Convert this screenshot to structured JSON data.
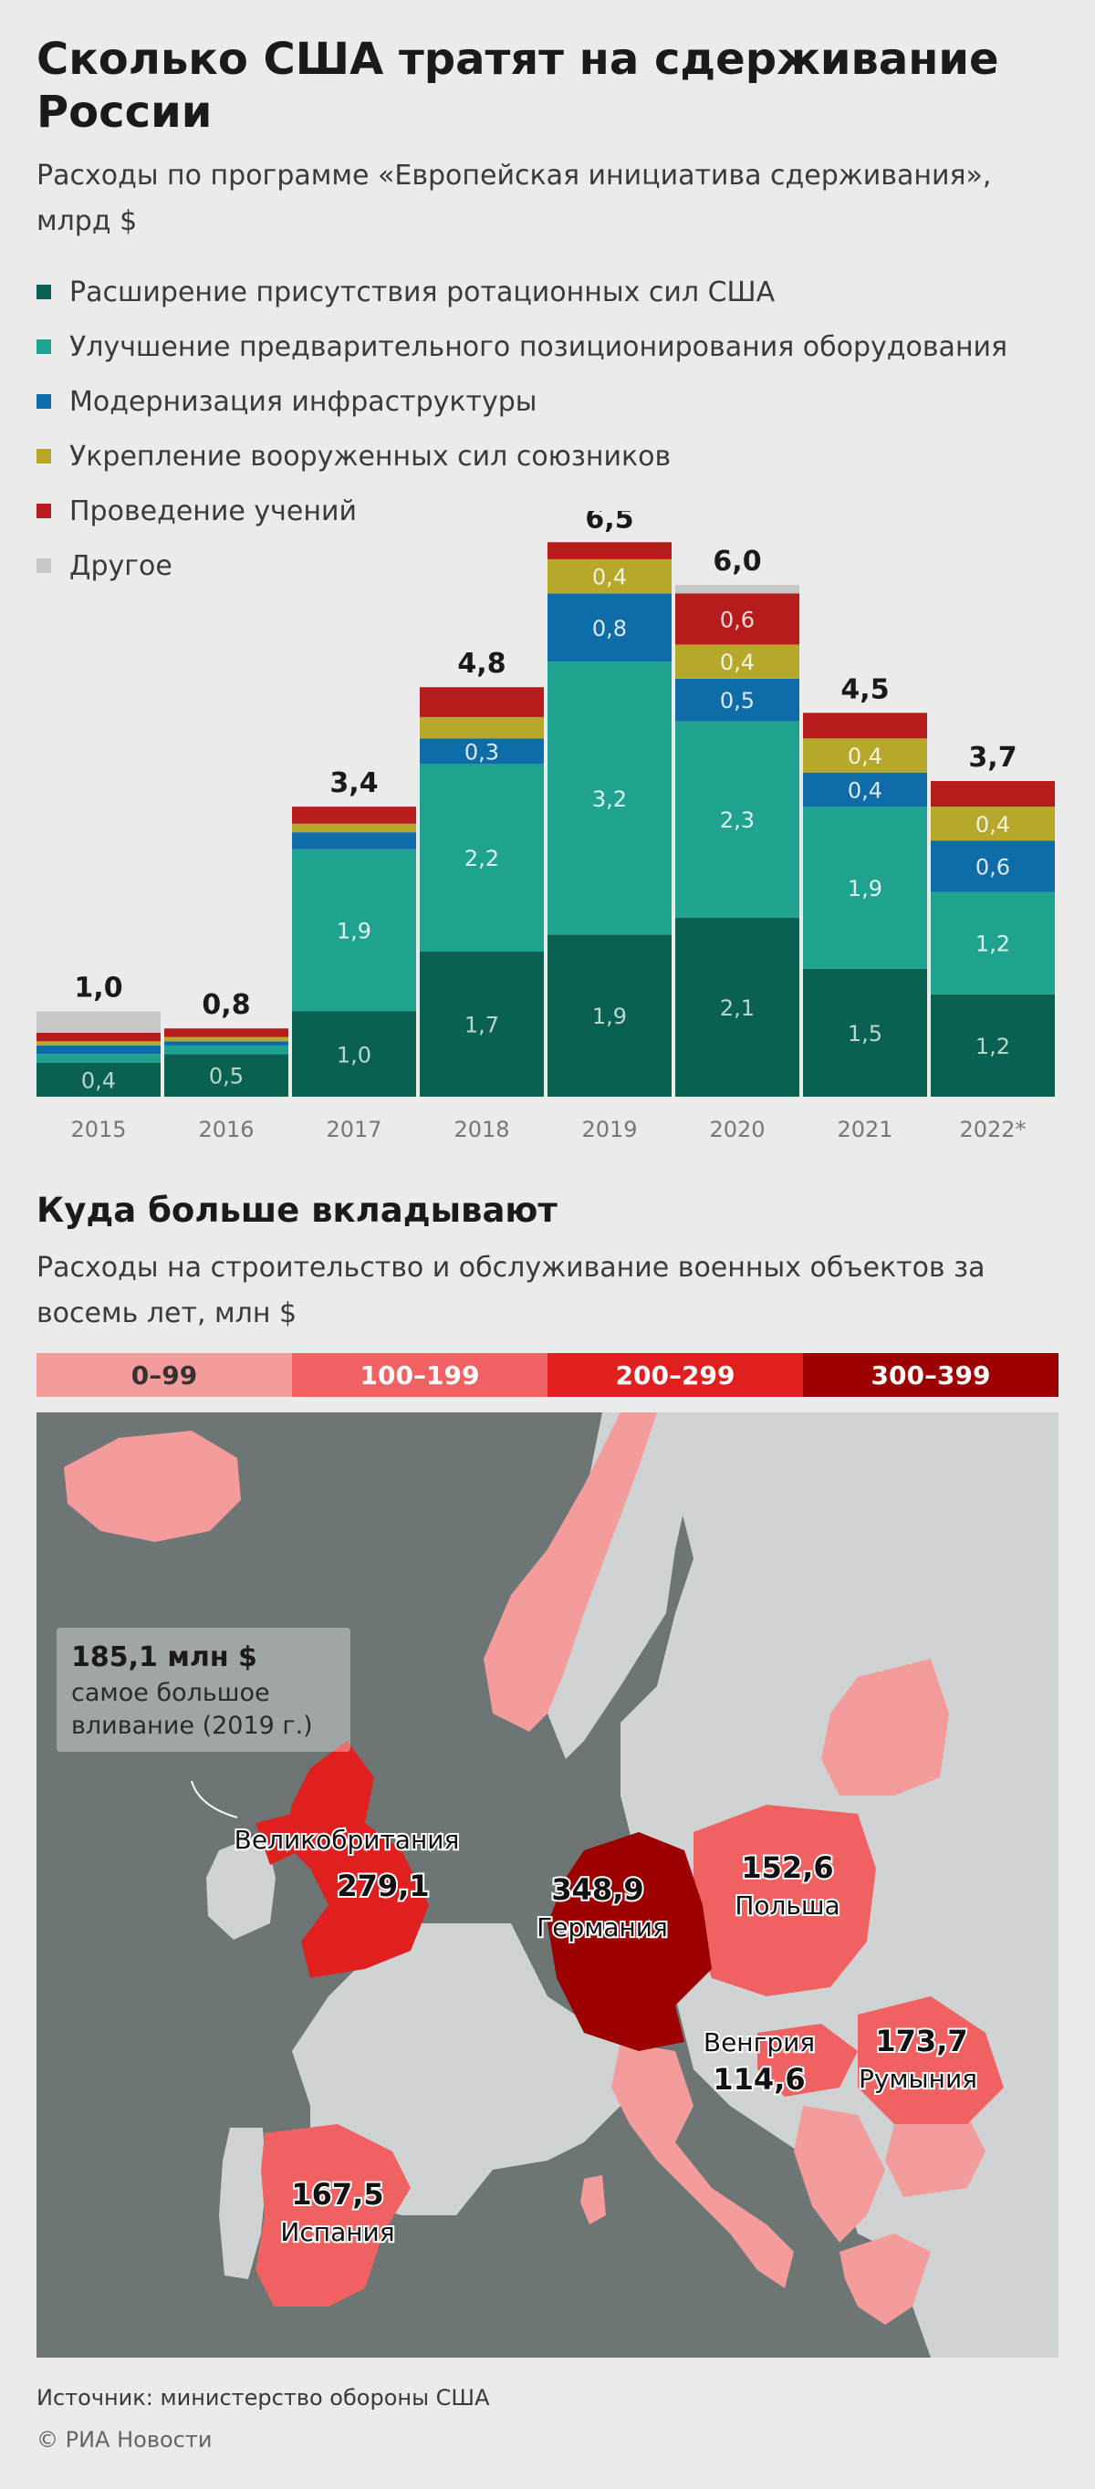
{
  "title": "Сколько США тратят на сдерживание России",
  "subtitle": "Расходы по программе «Европейская инициатива сдерживания», млрд $",
  "colors": {
    "rotation": "#0a6151",
    "prepositioning": "#1fa390",
    "infrastructure": "#0e6ca8",
    "allies": "#b5a82a",
    "exercises": "#b71c1c",
    "other": "#c8c8c8"
  },
  "legend": [
    {
      "label": "Расширение присутствия ротационных сил США",
      "color": "#0a6151"
    },
    {
      "label": "Улучшение предварительного позиционирования оборудования",
      "color": "#1fa390"
    },
    {
      "label": "Модернизация инфраструктуры",
      "color": "#0e6ca8"
    },
    {
      "label": "Укрепление вооруженных сил союзников",
      "color": "#b5a82a"
    },
    {
      "label": "Проведение учений",
      "color": "#b71c1c"
    },
    {
      "label": "Другое",
      "color": "#c8c8c8"
    }
  ],
  "chart_data": {
    "type": "bar",
    "stacked": true,
    "categories": [
      "2015",
      "2016",
      "2017",
      "2018",
      "2019",
      "2020",
      "2021",
      "2022*"
    ],
    "totals": [
      "1,0",
      "0,8",
      "3,4",
      "4,8",
      "6,5",
      "6,0",
      "4,5",
      "3,7"
    ],
    "total_values": [
      1.0,
      0.8,
      3.4,
      4.8,
      6.5,
      6.0,
      4.5,
      3.7
    ],
    "series": [
      {
        "name": "Расширение присутствия ротационных сил США",
        "color": "#0a6151",
        "values": [
          0.4,
          0.5,
          1.0,
          1.7,
          1.9,
          2.1,
          1.5,
          1.2
        ],
        "labels": [
          "0,4",
          "0,5",
          "1,0",
          "1,7",
          "1,9",
          "2,1",
          "1,5",
          "1,2"
        ]
      },
      {
        "name": "Улучшение предварительного позиционирования оборудования",
        "color": "#1fa390",
        "values": [
          0.1,
          0.1,
          1.9,
          2.2,
          3.2,
          2.3,
          1.9,
          1.2
        ],
        "labels": [
          "",
          "",
          "1,9",
          "2,2",
          "3,2",
          "2,3",
          "1,9",
          "1,2"
        ]
      },
      {
        "name": "Модернизация инфраструктуры",
        "color": "#0e6ca8",
        "values": [
          0.1,
          0.05,
          0.2,
          0.3,
          0.8,
          0.5,
          0.4,
          0.6
        ],
        "labels": [
          "",
          "",
          "",
          "0,3",
          "0,8",
          "0,5",
          "0,4",
          "0,6"
        ]
      },
      {
        "name": "Укрепление вооруженных сил союзников",
        "color": "#b5a82a",
        "values": [
          0.05,
          0.05,
          0.1,
          0.25,
          0.4,
          0.4,
          0.4,
          0.4
        ],
        "labels": [
          "",
          "",
          "",
          "",
          "0,4",
          "0,4",
          "0,4",
          "0,4"
        ]
      },
      {
        "name": "Проведение учений",
        "color": "#b71c1c",
        "values": [
          0.1,
          0.1,
          0.2,
          0.35,
          0.2,
          0.6,
          0.3,
          0.3
        ],
        "labels": [
          "",
          "",
          "",
          "",
          "",
          "0,6",
          "",
          ""
        ]
      },
      {
        "name": "Другое",
        "color": "#c8c8c8",
        "values": [
          0.25,
          0.0,
          0.0,
          0.0,
          0.0,
          0.1,
          0.0,
          0.0
        ],
        "labels": [
          "",
          "",
          "",
          "",
          "",
          "",
          "",
          ""
        ]
      }
    ],
    "ylim": [
      0,
      6.5
    ],
    "xlabel": "",
    "ylabel": ""
  },
  "section2": {
    "title": "Куда больше вкладывают",
    "subtitle": "Расходы на строительство и обслуживание военных объектов за восемь лет, млн $"
  },
  "scale": [
    {
      "label": "0–99",
      "color": "#f49b9b",
      "text_color": "#333333"
    },
    {
      "label": "100–199",
      "color": "#f06262",
      "text_color": "#ffffff"
    },
    {
      "label": "200–299",
      "color": "#e01f1f",
      "text_color": "#ffffff"
    },
    {
      "label": "300–399",
      "color": "#9c0000",
      "text_color": "#ffffff"
    }
  ],
  "map": {
    "colors": {
      "sea": "#6d7675",
      "other_land": "#cfd3d3",
      "bin1": "#f49b9b",
      "bin2": "#f06262",
      "bin3": "#e01f1f",
      "bin4": "#9c0000"
    },
    "countries": [
      {
        "name": "Великобритания",
        "value": "279,1",
        "bin": 3
      },
      {
        "name": "Германия",
        "value": "348,9",
        "bin": 4
      },
      {
        "name": "Польша",
        "value": "152,6",
        "bin": 2
      },
      {
        "name": "Венгрия",
        "value": "114,6",
        "bin": 2
      },
      {
        "name": "Румыния",
        "value": "173,7",
        "bin": 2
      },
      {
        "name": "Испания",
        "value": "167,5",
        "bin": 2
      }
    ],
    "callout": {
      "value": "185,1 млн $",
      "text": "самое большое вливание (2019 г.)"
    }
  },
  "source": "Источник: министерство обороны США",
  "copyright": "© РИА Новости"
}
